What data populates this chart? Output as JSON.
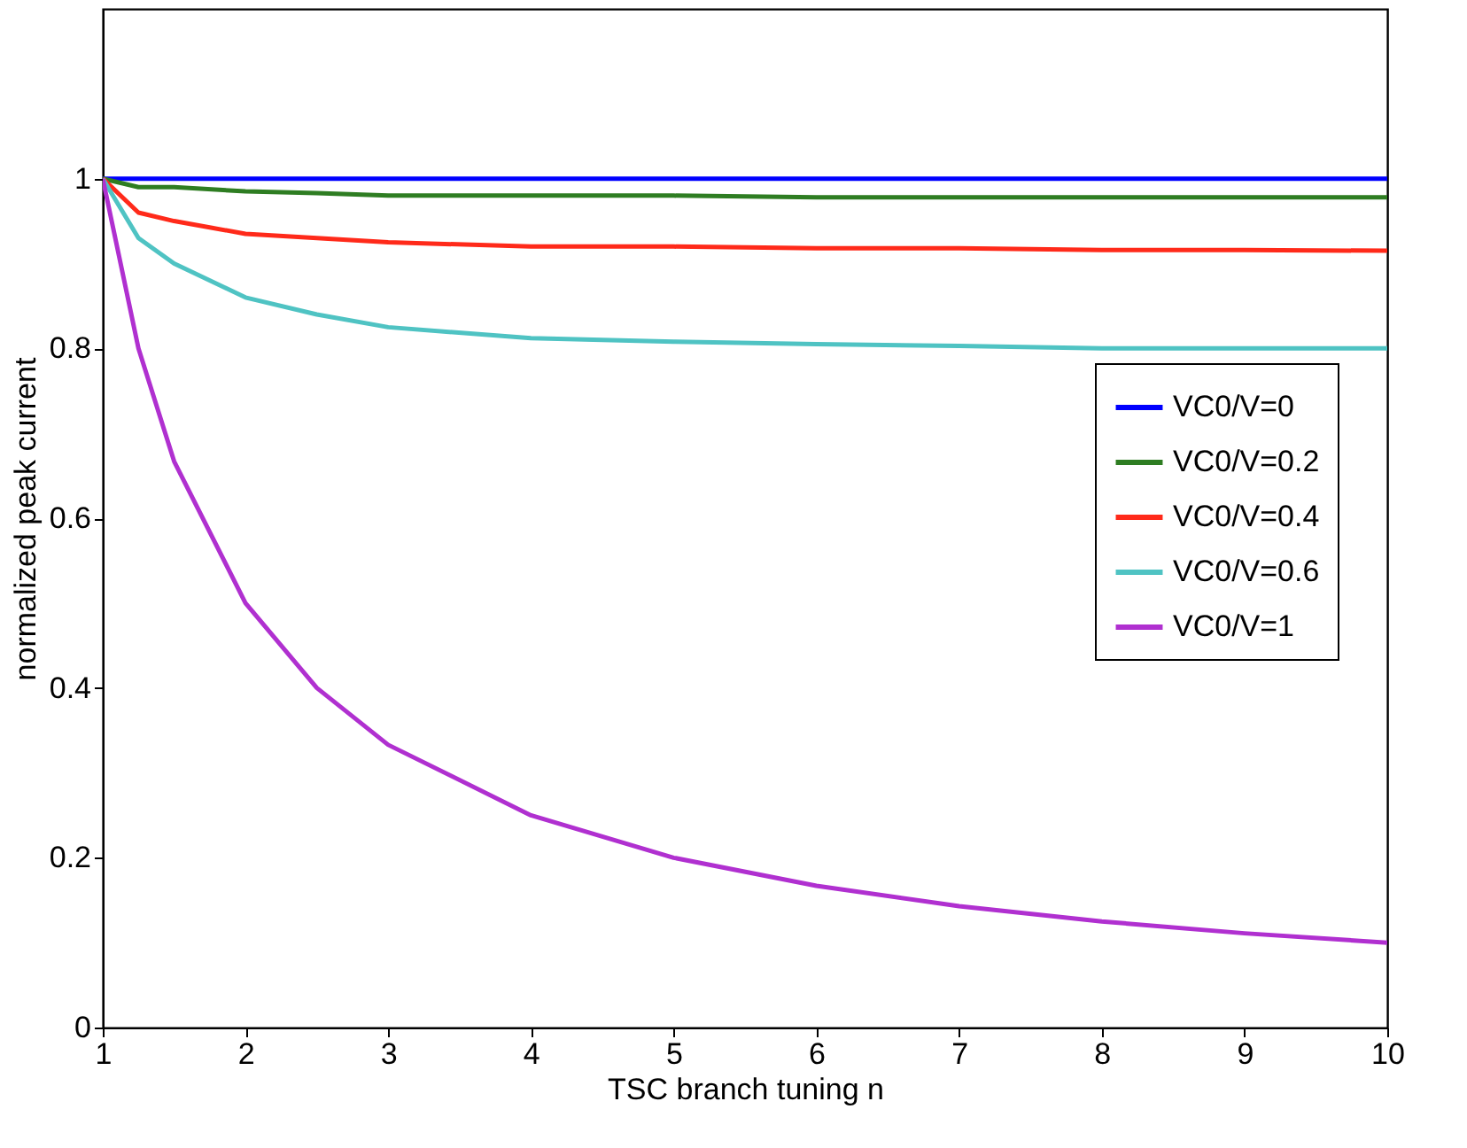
{
  "chart_data": {
    "type": "line",
    "xlabel": "TSC branch tuning n",
    "ylabel": "normalized peak current",
    "x": [
      1,
      1.25,
      1.5,
      2,
      2.5,
      3,
      4,
      5,
      6,
      7,
      8,
      9,
      10
    ],
    "xlim": [
      1,
      10
    ],
    "xticks": [
      1,
      2,
      3,
      4,
      5,
      6,
      7,
      8,
      9,
      10
    ],
    "ylim": [
      0,
      1.2
    ],
    "yticks": [
      0,
      0.2,
      0.4,
      0.6,
      0.8,
      1
    ],
    "grid": false,
    "legend": "right",
    "marker": "none",
    "line_style": "solid",
    "series": [
      {
        "name": "VC0/V=0",
        "color": "#0000ff",
        "values": [
          1,
          1,
          1,
          1,
          1,
          1,
          1,
          1,
          1,
          1,
          1,
          1,
          1
        ]
      },
      {
        "name": "VC0/V=0.2",
        "color": "#2e7d22",
        "values": [
          1,
          0.99,
          0.99,
          0.985,
          0.983,
          0.98,
          0.98,
          0.98,
          0.978,
          0.978,
          0.978,
          0.978,
          0.978
        ]
      },
      {
        "name": "VC0/V=0.4",
        "color": "#ff2a1a",
        "values": [
          1,
          0.96,
          0.95,
          0.935,
          0.93,
          0.925,
          0.92,
          0.92,
          0.918,
          0.918,
          0.916,
          0.916,
          0.915
        ]
      },
      {
        "name": "VC0/V=0.6",
        "color": "#4fc3c3",
        "values": [
          1,
          0.93,
          0.9,
          0.86,
          0.84,
          0.825,
          0.812,
          0.808,
          0.805,
          0.803,
          0.8,
          0.8,
          0.8
        ]
      },
      {
        "name": "VC0/V=1",
        "color": "#b030d0",
        "values": [
          1,
          0.8,
          0.667,
          0.5,
          0.4,
          0.333,
          0.25,
          0.2,
          0.167,
          0.143,
          0.125,
          0.111,
          0.1
        ]
      }
    ]
  }
}
